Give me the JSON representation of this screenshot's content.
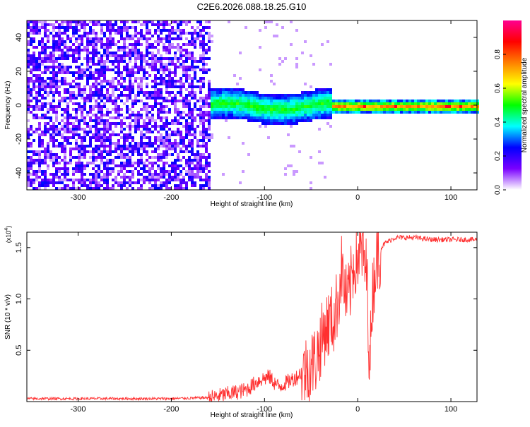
{
  "title": "C2E6.2026.088.18.25.G10",
  "chart_data": [
    {
      "type": "heatmap",
      "xlabel": "Height of straight line (km)",
      "ylabel": "Frequency (Hz)",
      "xlim": [
        -355,
        128
      ],
      "ylim": [
        -50,
        50
      ],
      "xticks": [
        -300,
        -200,
        -100,
        0,
        100
      ],
      "yticks": [
        -40,
        -20,
        0,
        20,
        40
      ],
      "grid": false,
      "colorbar": {
        "label": "Normalized spectral amplitude",
        "range": [
          0,
          1
        ],
        "ticks": [
          0.0,
          0.2,
          0.4,
          0.6,
          0.8
        ],
        "colors": [
          "#ffffff",
          "#7a00ff",
          "#0000ff",
          "#00ffff",
          "#00ff00",
          "#ffff00",
          "#ff8000",
          "#ff0000",
          "#ff0090"
        ]
      },
      "regions": [
        {
          "x_range": [
            -355,
            -160
          ],
          "description_level": "noise",
          "amplitude": [
            0.05,
            0.25
          ]
        },
        {
          "x_range": [
            -160,
            -30
          ],
          "center_hz": 0,
          "half_width_hz": 8,
          "amplitude": [
            0.2,
            0.45
          ]
        },
        {
          "x_range": [
            -30,
            128
          ],
          "center_hz": 0,
          "half_width_hz": 4,
          "amplitude": [
            0.4,
            0.9
          ]
        }
      ]
    },
    {
      "type": "line",
      "xlabel": "Height of straight line (km)",
      "ylabel": "SNR (10 * v/v)",
      "y_multiplier": "(x10",
      "y_multiplier_exp": "4",
      "y_multiplier_close": ")",
      "xlim": [
        -355,
        128
      ],
      "ylim": [
        0,
        1.65
      ],
      "xticks": [
        -300,
        -200,
        -100,
        0,
        100
      ],
      "yticks": [
        0.5,
        1.0,
        1.5
      ],
      "ytick_labels": [
        "0.5",
        "1.0",
        "1.5"
      ],
      "color": "#ff3030",
      "series": [
        {
          "x": [
            -355,
            -300,
            -250,
            -200,
            -160,
            -140,
            -120,
            -105,
            -95,
            -85,
            -75,
            -65,
            -55,
            -45,
            -40,
            -35,
            -30,
            -25,
            -20,
            -17,
            -15,
            -12,
            -10,
            -8,
            -5,
            0,
            5,
            10,
            13,
            15,
            20,
            30,
            40,
            60,
            80,
            100,
            128
          ],
          "y": [
            0.03,
            0.03,
            0.03,
            0.03,
            0.04,
            0.08,
            0.12,
            0.22,
            0.25,
            0.15,
            0.2,
            0.25,
            0.35,
            0.45,
            0.6,
            0.75,
            0.8,
            0.85,
            1.1,
            1.35,
            1.2,
            1.0,
            1.05,
            1.15,
            1.35,
            1.45,
            1.5,
            1.25,
            0.3,
            1.0,
            1.45,
            1.55,
            1.6,
            1.6,
            1.58,
            1.58,
            1.58
          ]
        }
      ]
    }
  ]
}
